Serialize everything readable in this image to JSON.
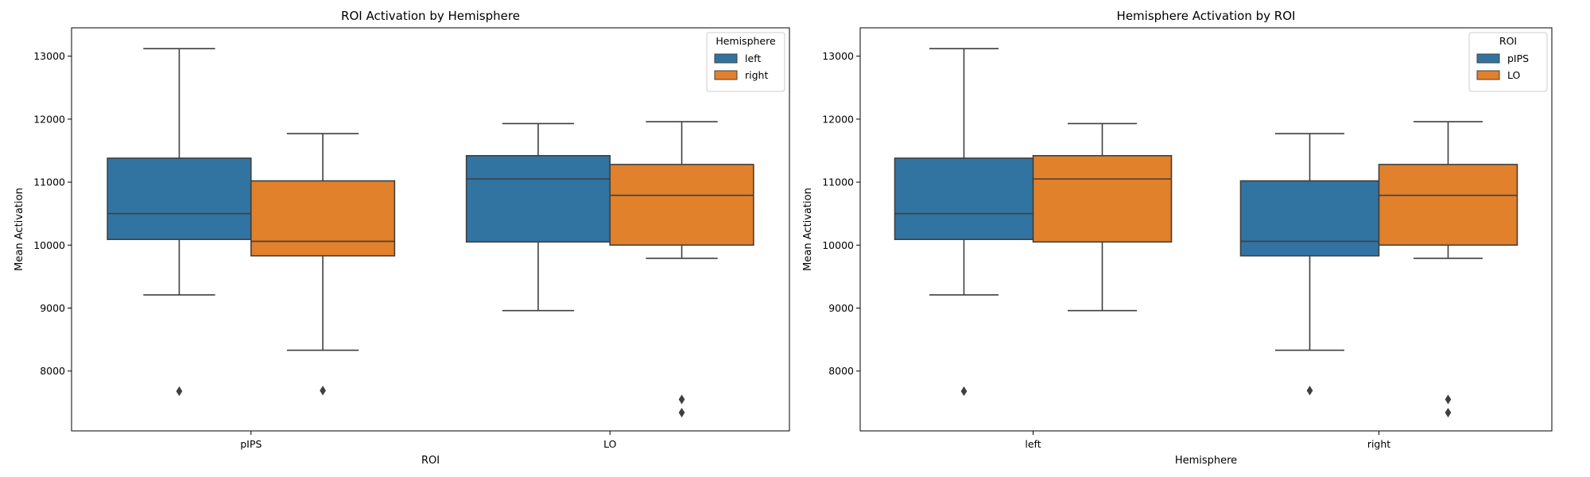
{
  "chart_data": [
    {
      "type": "box",
      "title": "ROI Activation by Hemisphere",
      "xlabel": "ROI",
      "ylabel": "Mean Activation",
      "ylim": [
        7050,
        13450
      ],
      "yticks": [
        8000,
        9000,
        10000,
        11000,
        12000,
        13000
      ],
      "categories": [
        "pIPS",
        "LO"
      ],
      "legend": {
        "title": "Hemisphere",
        "position": "upper-right"
      },
      "series": [
        {
          "name": "left",
          "color": "#3274a1",
          "boxes": [
            {
              "whisker_low": 9210,
              "q1": 10090,
              "median": 10500,
              "q3": 11380,
              "whisker_high": 13120,
              "outliers": [
                7680
              ]
            },
            {
              "whisker_low": 8960,
              "q1": 10050,
              "median": 11050,
              "q3": 11420,
              "whisker_high": 11930,
              "outliers": []
            }
          ]
        },
        {
          "name": "right",
          "color": "#e1812c",
          "boxes": [
            {
              "whisker_low": 8330,
              "q1": 9830,
              "median": 10060,
              "q3": 11020,
              "whisker_high": 11770,
              "outliers": [
                7690
              ]
            },
            {
              "whisker_low": 9790,
              "q1": 10000,
              "median": 10790,
              "q3": 11280,
              "whisker_high": 11960,
              "outliers": [
                7550,
                7340
              ]
            }
          ]
        }
      ]
    },
    {
      "type": "box",
      "title": "Hemisphere Activation by ROI",
      "xlabel": "Hemisphere",
      "ylabel": "Mean Activation",
      "ylim": [
        7050,
        13450
      ],
      "yticks": [
        8000,
        9000,
        10000,
        11000,
        12000,
        13000
      ],
      "categories": [
        "left",
        "right"
      ],
      "legend": {
        "title": "ROI",
        "position": "upper-right"
      },
      "series": [
        {
          "name": "pIPS",
          "color": "#3274a1",
          "boxes": [
            {
              "whisker_low": 9210,
              "q1": 10090,
              "median": 10500,
              "q3": 11380,
              "whisker_high": 13120,
              "outliers": [
                7680
              ]
            },
            {
              "whisker_low": 8330,
              "q1": 9830,
              "median": 10060,
              "q3": 11020,
              "whisker_high": 11770,
              "outliers": [
                7690
              ]
            }
          ]
        },
        {
          "name": "LO",
          "color": "#e1812c",
          "boxes": [
            {
              "whisker_low": 8960,
              "q1": 10050,
              "median": 11050,
              "q3": 11420,
              "whisker_high": 11930,
              "outliers": []
            },
            {
              "whisker_low": 9790,
              "q1": 10000,
              "median": 10790,
              "q3": 11280,
              "whisker_high": 11960,
              "outliers": [
                7550,
                7340
              ]
            }
          ]
        }
      ]
    }
  ]
}
